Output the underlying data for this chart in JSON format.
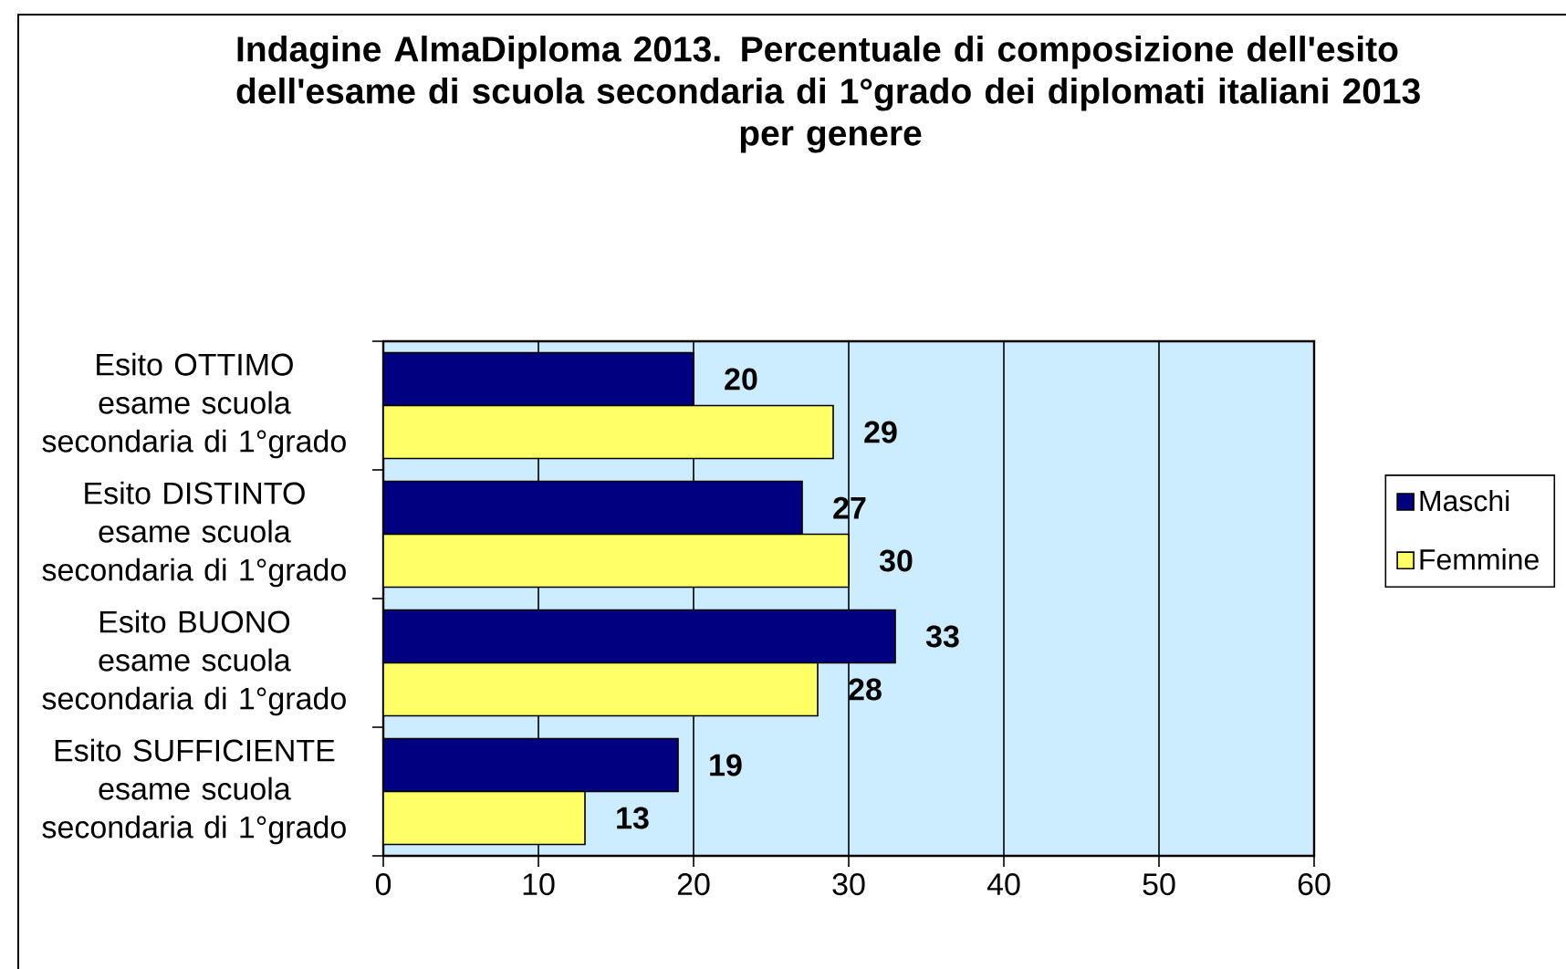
{
  "chart_data": {
    "type": "bar",
    "orientation": "horizontal",
    "title": "Indagine AlmaDiploma 2013. Percentuale di composizione dell'esito dell'esame di scuola secondaria di 1°grado dei diplomati italiani 2013 per genere",
    "categories": [
      "Esito OTTIMO esame scuola secondaria di 1°grado",
      "Esito DISTINTO esame scuola secondaria di 1°grado",
      "Esito BUONO esame scuola secondaria di 1°grado",
      "Esito SUFFICIENTE esame scuola secondaria di 1°grado"
    ],
    "series": [
      {
        "name": "Maschi",
        "color": "#000080",
        "values": [
          20,
          27,
          33,
          19
        ]
      },
      {
        "name": "Femmine",
        "color": "#FFFF66",
        "values": [
          29,
          30,
          28,
          13
        ]
      }
    ],
    "xlim": [
      0,
      60
    ],
    "xticks": [
      0,
      10,
      20,
      30,
      40,
      50,
      60
    ],
    "grid": "x",
    "legend": "right",
    "data_labels": true
  }
}
